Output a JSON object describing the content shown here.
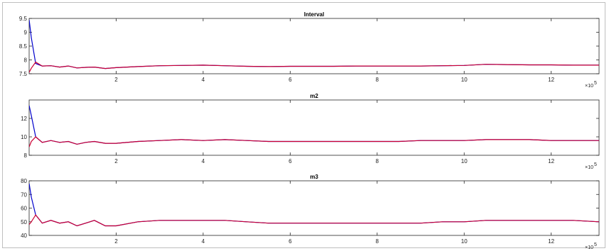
{
  "chart_data": [
    {
      "type": "line",
      "title": "Interval",
      "xlim": [
        0,
        1310000
      ],
      "ylim": [
        7.5,
        9.5
      ],
      "yticks": [
        7.5,
        8,
        8.5,
        9,
        9.5
      ],
      "ytick_labels": [
        "7.5",
        "8",
        "8.5",
        "9",
        "9.5"
      ],
      "xticks": [
        200000,
        400000,
        600000,
        800000,
        1000000,
        1200000
      ],
      "xtick_labels": [
        "2",
        "4",
        "6",
        "8",
        "10",
        "12"
      ],
      "x_exponent_label": "×10",
      "x_exponent": "5",
      "grid": false,
      "series": [
        {
          "color": "#0000cc",
          "x": [
            0,
            5000,
            15000,
            30000,
            50000,
            70000,
            90000,
            110000,
            130000,
            150000,
            175000,
            200000,
            250000,
            300000,
            350000,
            400000,
            450000,
            500000,
            550000,
            600000,
            650000,
            700000,
            750000,
            800000,
            850000,
            900000,
            950000,
            1000000,
            1050000,
            1100000,
            1150000,
            1200000,
            1250000,
            1310000
          ],
          "y": [
            9.45,
            8.8,
            7.87,
            7.78,
            7.79,
            7.74,
            7.78,
            7.71,
            7.73,
            7.74,
            7.69,
            7.72,
            7.76,
            7.79,
            7.8,
            7.81,
            7.79,
            7.77,
            7.76,
            7.77,
            7.77,
            7.77,
            7.78,
            7.78,
            7.78,
            7.78,
            7.79,
            7.8,
            7.84,
            7.83,
            7.82,
            7.82,
            7.81,
            7.81
          ]
        },
        {
          "color": "#cc0033",
          "x": [
            0,
            5000,
            15000,
            30000,
            50000,
            70000,
            90000,
            110000,
            130000,
            150000,
            175000,
            200000,
            250000,
            300000,
            350000,
            400000,
            450000,
            500000,
            550000,
            600000,
            650000,
            700000,
            750000,
            800000,
            850000,
            900000,
            950000,
            1000000,
            1050000,
            1100000,
            1150000,
            1200000,
            1250000,
            1310000
          ],
          "y": [
            7.55,
            7.7,
            7.92,
            7.78,
            7.79,
            7.74,
            7.78,
            7.71,
            7.73,
            7.74,
            7.69,
            7.72,
            7.76,
            7.79,
            7.8,
            7.81,
            7.79,
            7.77,
            7.76,
            7.77,
            7.77,
            7.77,
            7.78,
            7.78,
            7.78,
            7.78,
            7.79,
            7.8,
            7.84,
            7.83,
            7.82,
            7.82,
            7.81,
            7.81
          ]
        }
      ]
    },
    {
      "type": "line",
      "title": "m2",
      "xlim": [
        0,
        1310000
      ],
      "ylim": [
        8,
        14
      ],
      "yticks": [
        8,
        10,
        12
      ],
      "ytick_labels": [
        "8",
        "10",
        "12"
      ],
      "xticks": [
        200000,
        400000,
        600000,
        800000,
        1000000,
        1200000
      ],
      "xtick_labels": [
        "2",
        "4",
        "6",
        "8",
        "10",
        "12"
      ],
      "x_exponent_label": "×10",
      "x_exponent": "5",
      "grid": false,
      "series": [
        {
          "color": "#0000cc",
          "x": [
            0,
            5000,
            15000,
            30000,
            50000,
            70000,
            90000,
            110000,
            130000,
            150000,
            175000,
            200000,
            250000,
            300000,
            350000,
            400000,
            450000,
            500000,
            550000,
            600000,
            650000,
            700000,
            750000,
            800000,
            850000,
            900000,
            950000,
            1000000,
            1050000,
            1100000,
            1150000,
            1200000,
            1250000,
            1310000
          ],
          "y": [
            13.4,
            12.3,
            10.0,
            9.4,
            9.6,
            9.4,
            9.5,
            9.2,
            9.4,
            9.5,
            9.3,
            9.3,
            9.5,
            9.6,
            9.7,
            9.6,
            9.7,
            9.6,
            9.5,
            9.5,
            9.5,
            9.5,
            9.5,
            9.5,
            9.5,
            9.6,
            9.6,
            9.6,
            9.7,
            9.7,
            9.7,
            9.6,
            9.6,
            9.6
          ]
        },
        {
          "color": "#cc0033",
          "x": [
            0,
            5000,
            15000,
            30000,
            50000,
            70000,
            90000,
            110000,
            130000,
            150000,
            175000,
            200000,
            250000,
            300000,
            350000,
            400000,
            450000,
            500000,
            550000,
            600000,
            650000,
            700000,
            750000,
            800000,
            850000,
            900000,
            950000,
            1000000,
            1050000,
            1100000,
            1150000,
            1200000,
            1250000,
            1310000
          ],
          "y": [
            8.9,
            9.5,
            10.0,
            9.4,
            9.6,
            9.4,
            9.5,
            9.2,
            9.4,
            9.5,
            9.3,
            9.3,
            9.5,
            9.6,
            9.7,
            9.6,
            9.7,
            9.6,
            9.5,
            9.5,
            9.5,
            9.5,
            9.5,
            9.5,
            9.5,
            9.6,
            9.6,
            9.6,
            9.7,
            9.7,
            9.7,
            9.6,
            9.6,
            9.6
          ]
        }
      ]
    },
    {
      "type": "line",
      "title": "m3",
      "xlim": [
        0,
        1310000
      ],
      "ylim": [
        40,
        80
      ],
      "yticks": [
        40,
        50,
        60,
        70,
        80
      ],
      "ytick_labels": [
        "40",
        "50",
        "60",
        "70",
        "80"
      ],
      "xticks": [
        200000,
        400000,
        600000,
        800000,
        1000000,
        1200000
      ],
      "xtick_labels": [
        "2",
        "4",
        "6",
        "8",
        "10",
        "12"
      ],
      "x_exponent_label": "×10",
      "x_exponent": "5",
      "grid": false,
      "series": [
        {
          "color": "#0000cc",
          "x": [
            0,
            5000,
            15000,
            30000,
            50000,
            70000,
            90000,
            110000,
            130000,
            150000,
            175000,
            200000,
            250000,
            300000,
            350000,
            400000,
            450000,
            500000,
            550000,
            600000,
            650000,
            700000,
            750000,
            800000,
            850000,
            900000,
            950000,
            1000000,
            1050000,
            1100000,
            1150000,
            1200000,
            1250000,
            1310000
          ],
          "y": [
            78,
            68,
            55,
            49,
            51,
            49,
            50,
            47,
            49,
            51,
            47,
            47,
            50,
            51,
            51,
            51,
            51,
            50,
            49,
            49,
            49,
            49,
            49,
            49,
            49,
            49,
            50,
            50,
            51,
            51,
            51,
            51,
            51,
            50
          ]
        },
        {
          "color": "#cc0033",
          "x": [
            0,
            5000,
            15000,
            30000,
            50000,
            70000,
            90000,
            110000,
            130000,
            150000,
            175000,
            200000,
            250000,
            300000,
            350000,
            400000,
            450000,
            500000,
            550000,
            600000,
            650000,
            700000,
            750000,
            800000,
            850000,
            900000,
            950000,
            1000000,
            1050000,
            1100000,
            1150000,
            1200000,
            1250000,
            1310000
          ],
          "y": [
            48,
            50,
            55,
            49,
            51,
            49,
            50,
            47,
            49,
            51,
            47,
            47,
            50,
            51,
            51,
            51,
            51,
            50,
            49,
            49,
            49,
            49,
            49,
            49,
            49,
            49,
            50,
            50,
            51,
            51,
            51,
            51,
            51,
            50
          ]
        }
      ]
    }
  ]
}
